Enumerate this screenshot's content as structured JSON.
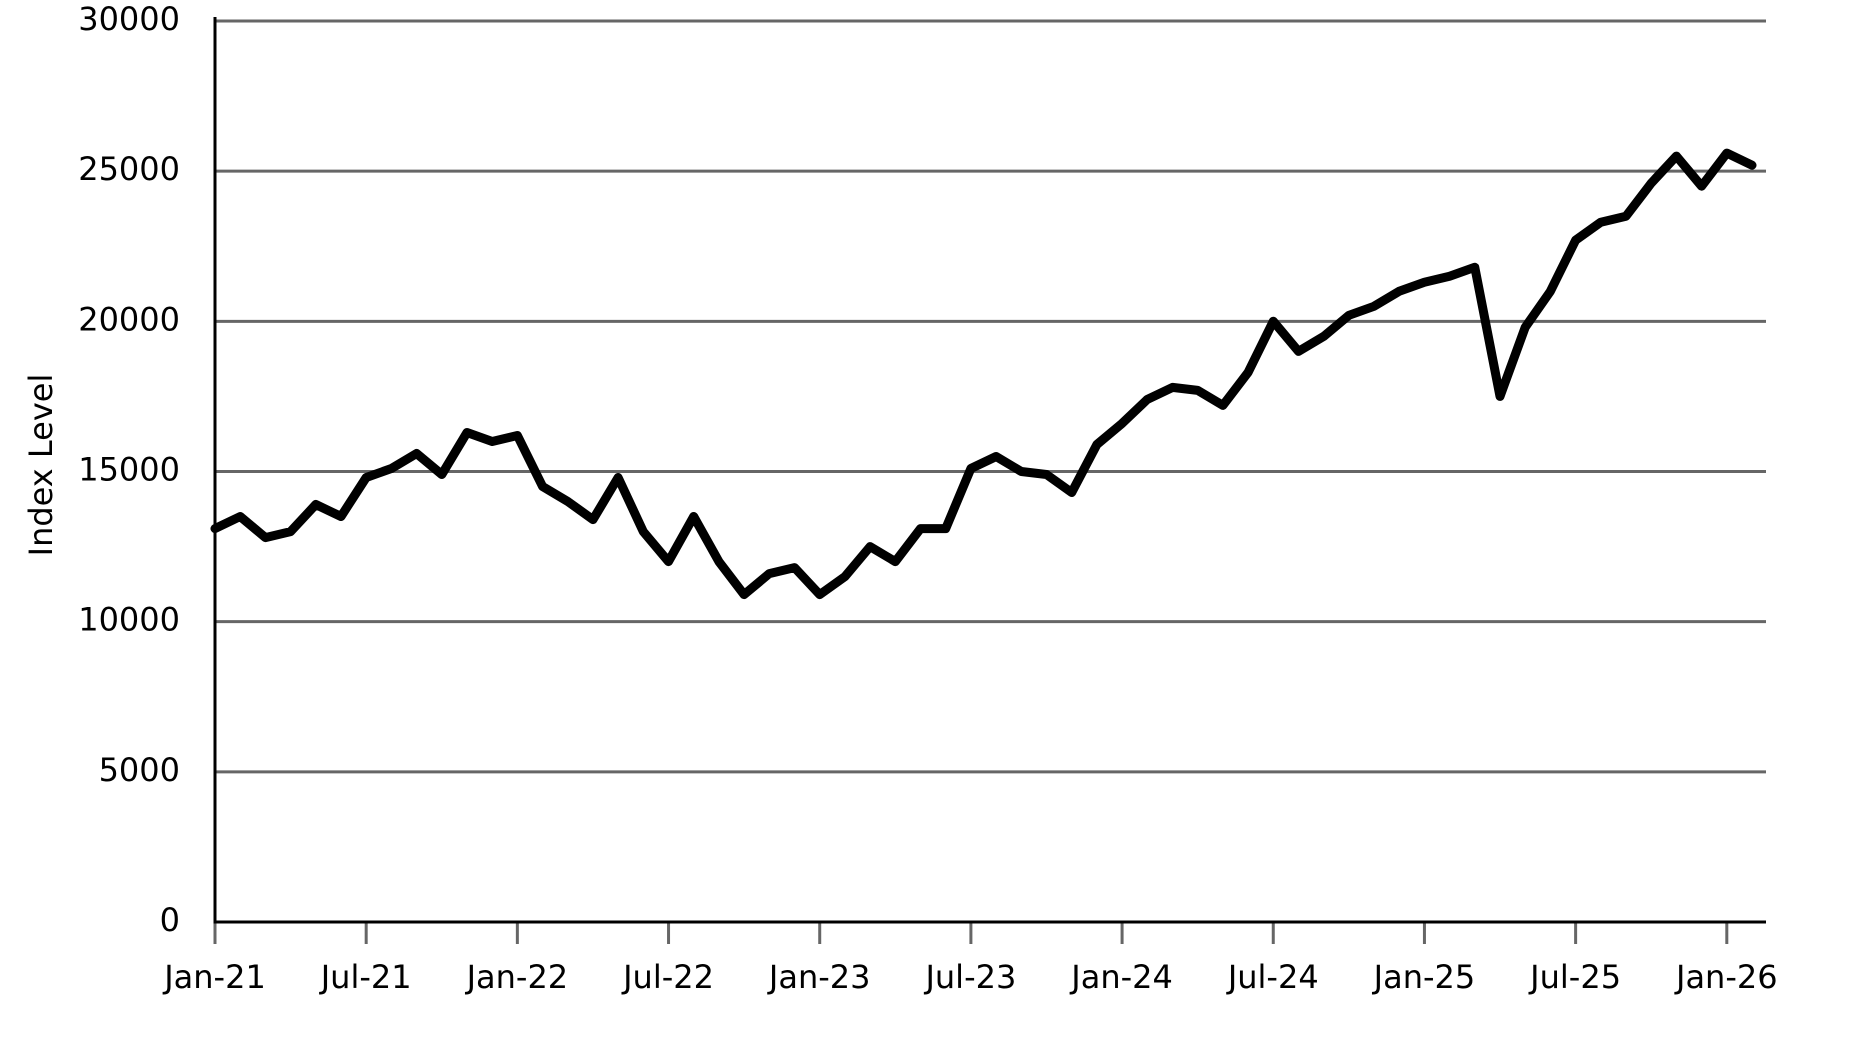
{
  "chart_data": {
    "type": "line",
    "y_label": "Index Level",
    "x": [
      "2021-01",
      "2021-02",
      "2021-03",
      "2021-04",
      "2021-05",
      "2021-06",
      "2021-07",
      "2021-08",
      "2021-09",
      "2021-10",
      "2021-11",
      "2021-12",
      "2022-01",
      "2022-02",
      "2022-03",
      "2022-04",
      "2022-05",
      "2022-06",
      "2022-07",
      "2022-08",
      "2022-09",
      "2022-10",
      "2022-11",
      "2022-12",
      "2023-01",
      "2023-02",
      "2023-03",
      "2023-04",
      "2023-05",
      "2023-06",
      "2023-07",
      "2023-08",
      "2023-09",
      "2023-10",
      "2023-11",
      "2023-12",
      "2024-01",
      "2024-02",
      "2024-03",
      "2024-04",
      "2024-05",
      "2024-06",
      "2024-07",
      "2024-08",
      "2024-09",
      "2024-10",
      "2024-11",
      "2024-12",
      "2025-01",
      "2025-02",
      "2025-03",
      "2025-04",
      "2025-05",
      "2025-06",
      "2025-07",
      "2025-08",
      "2025-09",
      "2025-10",
      "2025-11",
      "2025-12",
      "2026-01",
      "2026-02"
    ],
    "series": [
      {
        "color": "#000000",
        "values": [
          13100,
          13500,
          12800,
          13000,
          13900,
          13500,
          14800,
          15100,
          15600,
          14900,
          16300,
          16000,
          16200,
          14500,
          14000,
          13400,
          14800,
          13000,
          12000,
          13500,
          12000,
          10900,
          11600,
          11800,
          10900,
          11500,
          12500,
          12000,
          13100,
          13100,
          15100,
          15500,
          15000,
          14900,
          14300,
          15900,
          16600,
          17400,
          17800,
          17700,
          17200,
          18300,
          20000,
          19000,
          19500,
          20200,
          20500,
          21000,
          21300,
          21500,
          21800,
          17500,
          19800,
          21000,
          22700,
          23300,
          23500,
          24600,
          25500,
          24500,
          25600,
          25200
        ]
      }
    ],
    "xlim": [
      "2021-01",
      "2026-02"
    ],
    "xticks": [
      {
        "value": "2021-01",
        "label": "Jan-21"
      },
      {
        "value": "2021-07",
        "label": "Jul-21"
      },
      {
        "value": "2022-01",
        "label": "Jan-22"
      },
      {
        "value": "2022-07",
        "label": "Jul-22"
      },
      {
        "value": "2023-01",
        "label": "Jan-23"
      },
      {
        "value": "2023-07",
        "label": "Jul-23"
      },
      {
        "value": "2024-01",
        "label": "Jan-24"
      },
      {
        "value": "2024-07",
        "label": "Jul-24"
      },
      {
        "value": "2025-01",
        "label": "Jan-25"
      },
      {
        "value": "2025-07",
        "label": "Jul-25"
      },
      {
        "value": "2026-01",
        "label": "Jan-26"
      }
    ],
    "ylim": [
      0,
      30000
    ],
    "yticks": [
      0,
      5000,
      10000,
      15000,
      20000,
      25000,
      30000
    ],
    "grid": true
  }
}
